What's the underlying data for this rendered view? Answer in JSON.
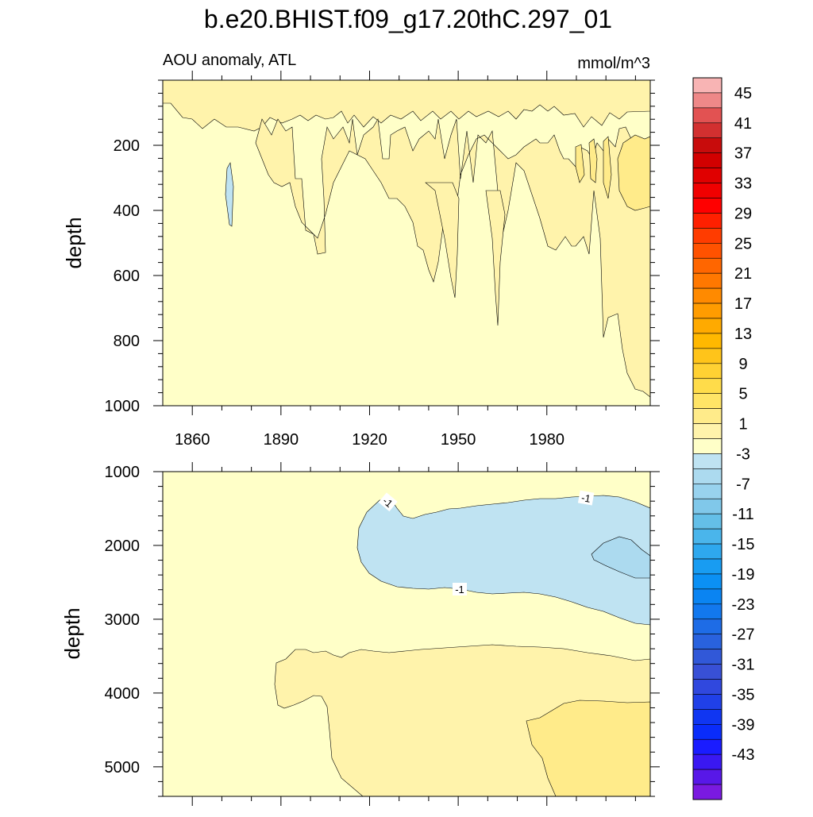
{
  "title": "b.e20.BHIST.f09_g17.20thC.297_01",
  "left_string": "AOU anomaly, ATL",
  "right_string": "mmol/m^3",
  "ylabel": "depth",
  "chart_data": [
    {
      "type": "contour",
      "panel": "upper",
      "ylabel": "depth",
      "x_range": [
        1850,
        2015
      ],
      "y_range": [
        0,
        1000
      ],
      "y_reversed": true,
      "x_ticks": [
        1860,
        1890,
        1920,
        1950,
        1980
      ],
      "y_ticks": [
        200,
        400,
        600,
        800,
        1000
      ],
      "background_level": "0 to 1",
      "regions": [
        {
          "level": "1 to 3",
          "x": [
            1880,
            1904,
            1912,
            1928,
            1934,
            1946,
            1954,
            1962,
            1972,
            1988,
            1996,
            2015
          ],
          "depth_max": [
            220,
            530,
            330,
            300,
            350,
            670,
            750,
            360,
            300,
            880,
            560,
            960
          ]
        },
        {
          "level": "3 to 5",
          "x": [
            1995,
            2015
          ],
          "depth_range": [
            180,
            330
          ]
        },
        {
          "level": "-1 to -3",
          "x": [
            1871
          ],
          "depth_range": [
            260,
            450
          ]
        }
      ]
    },
    {
      "type": "contour",
      "panel": "lower",
      "ylabel": "depth",
      "x_range": [
        1850,
        2015
      ],
      "y_range": [
        1000,
        5400
      ],
      "y_reversed": true,
      "x_ticks": [
        1860,
        1890,
        1920,
        1950,
        1980
      ],
      "y_ticks": [
        1000,
        2000,
        3000,
        4000,
        5000
      ],
      "background_level": "0 to 1",
      "contour_labels": [
        "-1",
        "-1",
        "-1"
      ],
      "regions": [
        {
          "level": "-1 to -3",
          "x_range": [
            1917,
            2015
          ],
          "depth_range": [
            1330,
            3080
          ]
        },
        {
          "level": "-3 to -5",
          "x_range": [
            1985,
            2015
          ],
          "depth_range": [
            1900,
            2450
          ]
        },
        {
          "level": "1 to 3",
          "x_range": [
            1886,
            2015
          ],
          "depth_range": [
            3330,
            5400
          ]
        },
        {
          "level": "3 to 5",
          "x_range": [
            1987,
            2015
          ],
          "depth_range": [
            4080,
            5400
          ]
        }
      ]
    }
  ],
  "colorbar": {
    "colors": [
      "#f8b4b4",
      "#ee8888",
      "#e25252",
      "#d23030",
      "#c80c0c",
      "#d20000",
      "#e00000",
      "#f00000",
      "#ff0000",
      "#ff2000",
      "#ff3c00",
      "#ff5200",
      "#ff6600",
      "#ff7800",
      "#ff8a00",
      "#ff9c00",
      "#ffaa00",
      "#ffb800",
      "#ffc41a",
      "#ffd133",
      "#ffdc4a",
      "#ffe466",
      "#ffeb8a",
      "#fff3ab",
      "#ffffc8",
      "#bfe3f2",
      "#acdaef",
      "#98d2ee",
      "#80c8ea",
      "#64bfe8",
      "#4ab5eb",
      "#2ea8ee",
      "#189cf2",
      "#0b90f4",
      "#0a84f2",
      "#1278ee",
      "#1e6ce6",
      "#2962de",
      "#3158d8",
      "#3850d6",
      "#3048de",
      "#2040e8",
      "#1036f2",
      "#0a2cfa",
      "#1a1cff",
      "#3a18f2",
      "#5818e8",
      "#7a1ae0"
    ],
    "labels": [
      "45",
      "41",
      "37",
      "33",
      "29",
      "25",
      "21",
      "17",
      "13",
      "9",
      "5",
      "1",
      "-3",
      "-7",
      "-11",
      "-15",
      "-19",
      "-23",
      "-27",
      "-31",
      "-35",
      "-39",
      "-43"
    ]
  },
  "colors": {
    "background_level": "#ffffc8",
    "level_1_3": "#fff3ab",
    "level_3_5": "#ffeb8a",
    "level_m1_m3": "#bfe3f2",
    "level_m3_m5": "#acdaef"
  }
}
